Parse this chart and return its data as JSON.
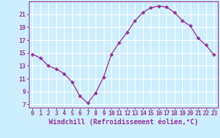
{
  "x_values": [
    0,
    1,
    2,
    3,
    4,
    5,
    6,
    7,
    8,
    9,
    10,
    11,
    12,
    13,
    14,
    15,
    16,
    17,
    18,
    19,
    20,
    21,
    22,
    23
  ],
  "y_values": [
    14.8,
    14.2,
    13.0,
    12.5,
    11.8,
    10.5,
    8.3,
    7.2,
    8.8,
    11.2,
    14.8,
    16.6,
    18.2,
    20.0,
    21.3,
    22.0,
    22.3,
    22.1,
    21.3,
    20.0,
    19.2,
    17.3,
    16.2,
    14.7
  ],
  "line_color": "#993399",
  "marker": "D",
  "marker_size": 2.5,
  "bg_color": "#cceeff",
  "grid_color": "#ffffff",
  "xlabel": "Windchill (Refroidissement éolien,°C)",
  "yticks": [
    7,
    9,
    11,
    13,
    15,
    17,
    19,
    21
  ],
  "xticks": [
    0,
    1,
    2,
    3,
    4,
    5,
    6,
    7,
    8,
    9,
    10,
    11,
    12,
    13,
    14,
    15,
    16,
    17,
    18,
    19,
    20,
    21,
    22,
    23
  ],
  "ylim": [
    6.5,
    23.0
  ],
  "xlim": [
    -0.5,
    23.5
  ],
  "label_color": "#993399",
  "tick_fontsize": 6,
  "xlabel_fontsize": 7,
  "linewidth": 1.0
}
